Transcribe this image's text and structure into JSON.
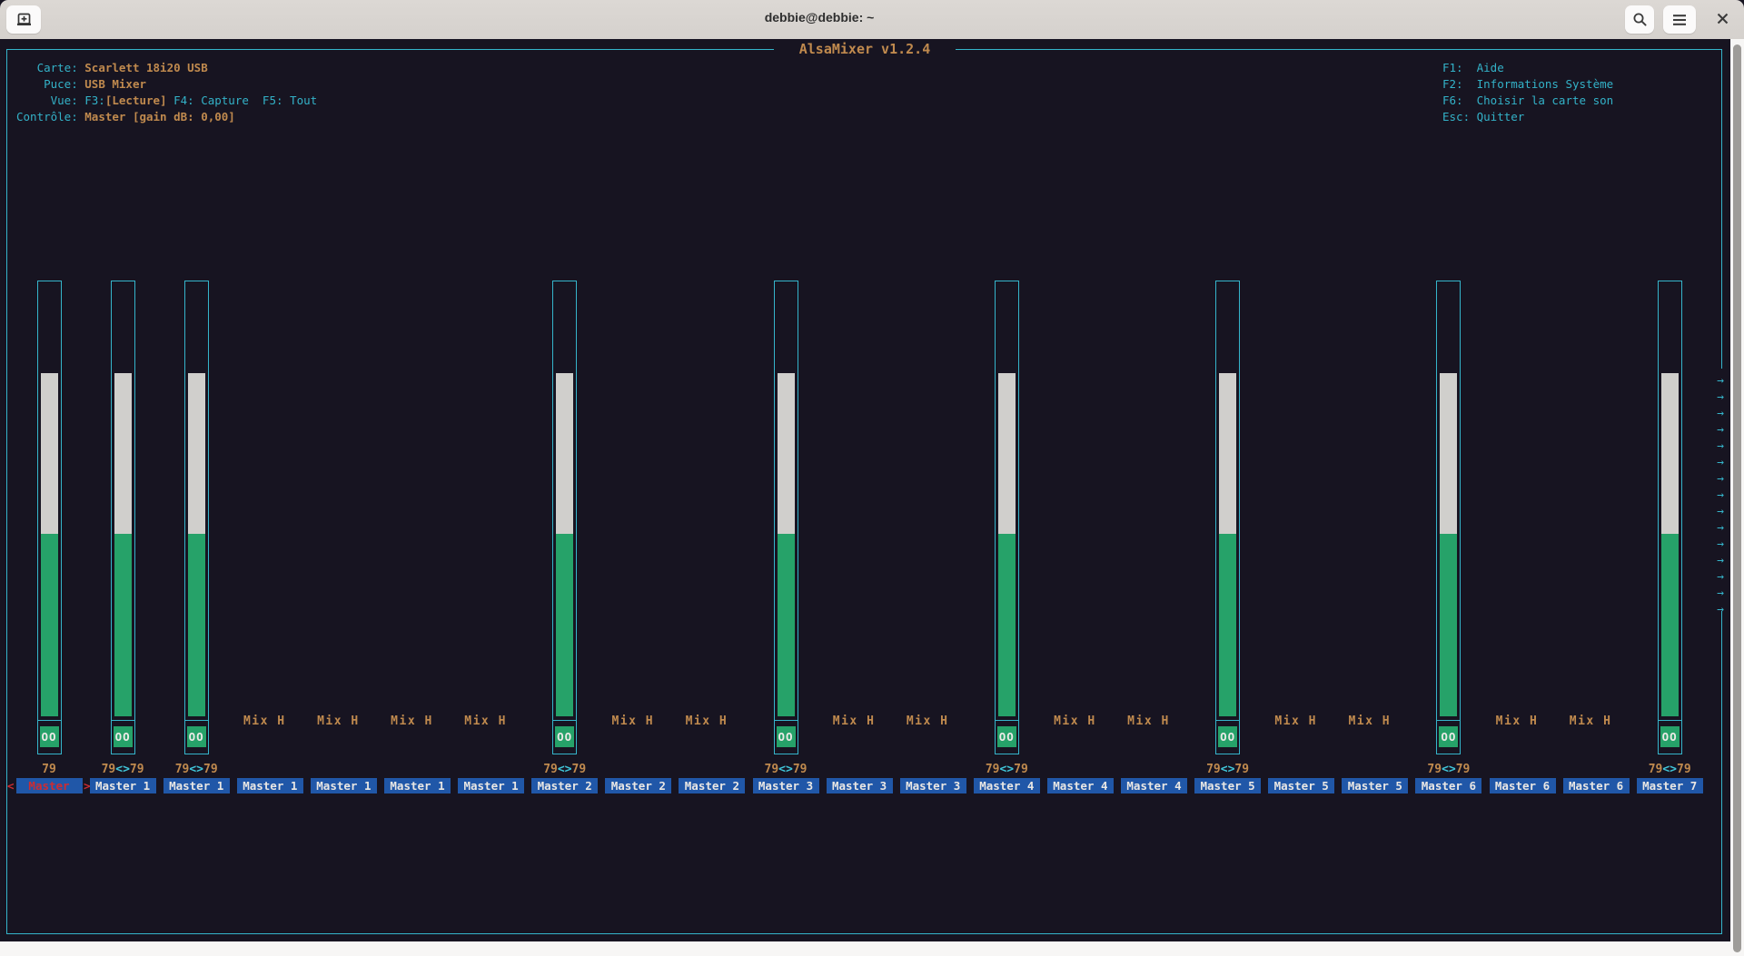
{
  "titlebar": {
    "title": "debbie@debbie: ~",
    "new_tab_icon": "new-tab-icon",
    "search_icon": "search-icon",
    "menu_icon": "menu-icon",
    "close_icon": "close-icon"
  },
  "mixer": {
    "title": " AlsaMixer v1.2.4 ",
    "info": [
      {
        "segments": [
          {
            "text": "   Carte: ",
            "color": "cyan"
          },
          {
            "text": "Scarlett 18i20 USB",
            "color": "orange"
          }
        ]
      },
      {
        "segments": [
          {
            "text": "    Puce: ",
            "color": "cyan"
          },
          {
            "text": "USB Mixer",
            "color": "orange"
          }
        ]
      },
      {
        "segments": [
          {
            "text": "     Vue: F3:",
            "color": "cyan"
          },
          {
            "text": "[Lecture]",
            "color": "orange"
          },
          {
            "text": " F4: Capture  F5: Tout",
            "color": "cyan"
          }
        ]
      },
      {
        "segments": [
          {
            "text": "Contrôle: ",
            "color": "cyan"
          },
          {
            "text": "Master [gain dB: 0,00]",
            "color": "orange"
          }
        ]
      }
    ],
    "help": [
      "F1:  Aide",
      "F2:  Informations Système",
      "F6:  Choisir la carte son",
      "Esc: Quitter"
    ],
    "scroll_more": {
      "glyph": "→",
      "count": 15
    },
    "controls": [
      {
        "label": "Master",
        "selected": true,
        "type": "bar",
        "volume": 79,
        "mute": "OO",
        "value": [
          {
            "text": "79",
            "color": "orange"
          }
        ]
      },
      {
        "label": "Master 1",
        "type": "bar",
        "volume": 79,
        "mute": "OO",
        "value": [
          {
            "text": "79",
            "color": "orange"
          },
          {
            "text": "<>",
            "color": "cyan"
          },
          {
            "text": "79",
            "color": "orange"
          }
        ]
      },
      {
        "label": "Master 1",
        "type": "bar",
        "volume": 79,
        "mute": "OO",
        "value": [
          {
            "text": "79",
            "color": "orange"
          },
          {
            "text": "<>",
            "color": "cyan"
          },
          {
            "text": "79",
            "color": "orange"
          }
        ]
      },
      {
        "label": "Master 1",
        "type": "enum",
        "value_text": "Mix H"
      },
      {
        "label": "Master 1",
        "type": "enum",
        "value_text": "Mix H"
      },
      {
        "label": "Master 1",
        "type": "enum",
        "value_text": "Mix H"
      },
      {
        "label": "Master 1",
        "type": "enum",
        "value_text": "Mix H"
      },
      {
        "label": "Master 2",
        "type": "bar",
        "volume": 79,
        "mute": "OO",
        "value": [
          {
            "text": "79",
            "color": "orange"
          },
          {
            "text": "<>",
            "color": "cyan"
          },
          {
            "text": "79",
            "color": "orange"
          }
        ]
      },
      {
        "label": "Master 2",
        "type": "enum",
        "value_text": "Mix H"
      },
      {
        "label": "Master 2",
        "type": "enum",
        "value_text": "Mix H"
      },
      {
        "label": "Master 3",
        "type": "bar",
        "volume": 79,
        "mute": "OO",
        "value": [
          {
            "text": "79",
            "color": "orange"
          },
          {
            "text": "<>",
            "color": "cyan"
          },
          {
            "text": "79",
            "color": "orange"
          }
        ]
      },
      {
        "label": "Master 3",
        "type": "enum",
        "value_text": "Mix H"
      },
      {
        "label": "Master 3",
        "type": "enum",
        "value_text": "Mix H"
      },
      {
        "label": "Master 4",
        "type": "bar",
        "volume": 79,
        "mute": "OO",
        "value": [
          {
            "text": "79",
            "color": "orange"
          },
          {
            "text": "<>",
            "color": "cyan"
          },
          {
            "text": "79",
            "color": "orange"
          }
        ]
      },
      {
        "label": "Master 4",
        "type": "enum",
        "value_text": "Mix H"
      },
      {
        "label": "Master 4",
        "type": "enum",
        "value_text": "Mix H"
      },
      {
        "label": "Master 5",
        "type": "bar",
        "volume": 79,
        "mute": "OO",
        "value": [
          {
            "text": "79",
            "color": "orange"
          },
          {
            "text": "<>",
            "color": "cyan"
          },
          {
            "text": "79",
            "color": "orange"
          }
        ]
      },
      {
        "label": "Master 5",
        "type": "enum",
        "value_text": "Mix H"
      },
      {
        "label": "Master 5",
        "type": "enum",
        "value_text": "Mix H"
      },
      {
        "label": "Master 6",
        "type": "bar",
        "volume": 79,
        "mute": "OO",
        "value": [
          {
            "text": "79",
            "color": "orange"
          },
          {
            "text": "<>",
            "color": "cyan"
          },
          {
            "text": "79",
            "color": "orange"
          }
        ]
      },
      {
        "label": "Master 6",
        "type": "enum",
        "value_text": "Mix H"
      },
      {
        "label": "Master 6",
        "type": "enum",
        "value_text": "Mix H"
      },
      {
        "label": "Master 7",
        "type": "bar",
        "volume": 79,
        "mute": "OO",
        "value": [
          {
            "text": "79",
            "color": "orange"
          },
          {
            "text": "<>",
            "color": "cyan"
          },
          {
            "text": "79",
            "color": "orange"
          }
        ]
      }
    ],
    "selected_brackets": {
      "left": "<",
      "right": ">"
    }
  },
  "colors": {
    "terminal_bg": "#171421",
    "cyan": "#33b2c8",
    "cyan_bright": "#41c6da",
    "orange": "#c08a4e",
    "green": "#26a269",
    "fill_white": "#d0cfcc",
    "label_blue": "#2057a8",
    "selected_red": "#ce2c31",
    "titlebar_bg": "#d8d4d0"
  }
}
